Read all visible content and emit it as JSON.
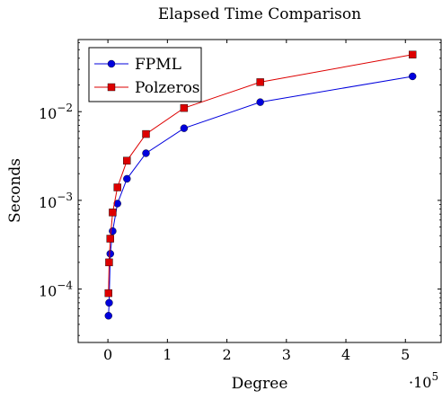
{
  "chart_data": {
    "type": "line",
    "title": "Elapsed Time Comparison",
    "xlabel": "Degree",
    "ylabel": "Seconds",
    "x_scale_label": {
      "base": "·10",
      "exp": "5"
    },
    "xlim": [
      -50000,
      560000
    ],
    "ylim": [
      2.5e-05,
      0.065
    ],
    "yscale": "log",
    "grid": false,
    "legend_position": "top-left",
    "x_ticks": [
      0,
      100000,
      200000,
      300000,
      400000,
      500000
    ],
    "x_tick_labels": [
      "0",
      "1",
      "2",
      "3",
      "4",
      "5"
    ],
    "y_ticks": [
      0.0001,
      0.001,
      0.01
    ],
    "y_tick_labels": [
      {
        "base": "10",
        "exp": "−4"
      },
      {
        "base": "10",
        "exp": "−3"
      },
      {
        "base": "10",
        "exp": "−2"
      }
    ],
    "series": [
      {
        "name": "FPML",
        "color": "#0000dd",
        "marker": "circle",
        "x": [
          1000,
          2000,
          4000,
          8000,
          16000,
          32000,
          64000,
          128000,
          256000,
          512000
        ],
        "y": [
          5e-05,
          7e-05,
          0.00025,
          0.00045,
          0.00092,
          0.00175,
          0.0034,
          0.0065,
          0.0128,
          0.025
        ]
      },
      {
        "name": "Polzeros",
        "color": "#dd0000",
        "marker": "square",
        "x": [
          1000,
          2000,
          4000,
          8000,
          16000,
          32000,
          64000,
          128000,
          256000,
          512000
        ],
        "y": [
          9e-05,
          0.0002,
          0.00037,
          0.00073,
          0.0014,
          0.0028,
          0.0056,
          0.011,
          0.0215,
          0.044
        ]
      }
    ]
  }
}
